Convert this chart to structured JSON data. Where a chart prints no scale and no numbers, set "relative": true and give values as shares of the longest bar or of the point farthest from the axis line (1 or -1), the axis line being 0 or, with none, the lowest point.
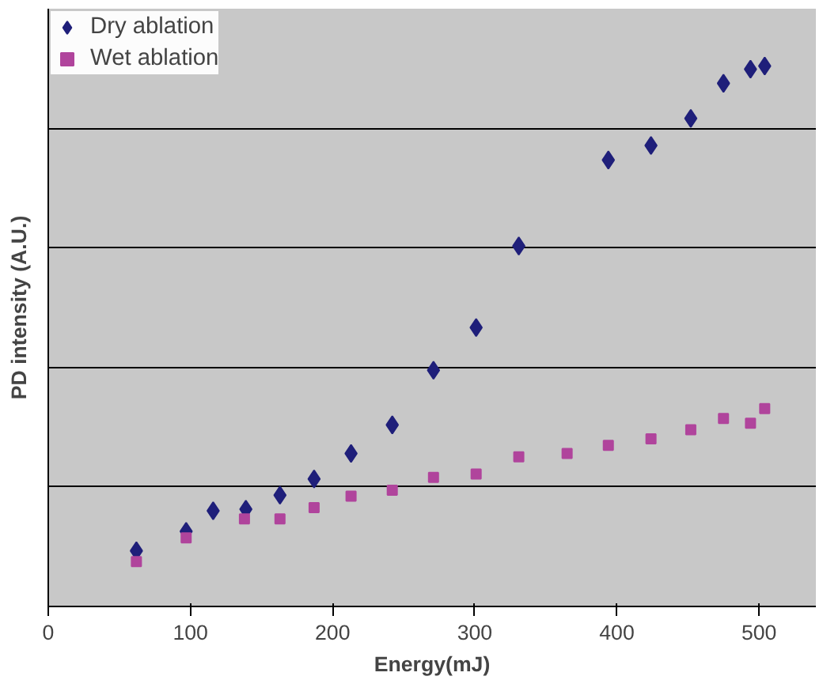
{
  "chart_data": {
    "type": "scatter",
    "xlabel": "Energy(mJ)",
    "ylabel": "PD intensity (A.U.)",
    "relative": true,
    "xlim": [
      0,
      540
    ],
    "xticks": [
      0,
      100,
      200,
      300,
      400,
      500
    ],
    "grid": "y",
    "legend": "top left",
    "series": [
      {
        "name": "Dry ablation",
        "color": "#1f1f7a",
        "marker": "diamond",
        "x": [
          62,
          97,
          116,
          139,
          163,
          187,
          213,
          242,
          271,
          301,
          331,
          394,
          424,
          452,
          475,
          494,
          504
        ],
        "values": [
          0.103,
          0.139,
          0.177,
          0.18,
          0.206,
          0.236,
          0.283,
          0.336,
          0.437,
          0.516,
          0.667,
          0.826,
          0.853,
          0.903,
          0.968,
          0.994,
          1
        ]
      },
      {
        "name": "Wet ablation",
        "color": "#b0449c",
        "marker": "square",
        "x": [
          62,
          97,
          138,
          163,
          187,
          213,
          242,
          271,
          301,
          331,
          365,
          394,
          424,
          452,
          475,
          494,
          504
        ],
        "values": [
          0.083,
          0.127,
          0.162,
          0.162,
          0.183,
          0.204,
          0.215,
          0.239,
          0.245,
          0.277,
          0.283,
          0.298,
          0.31,
          0.327,
          0.348,
          0.339,
          0.366
        ]
      }
    ]
  }
}
